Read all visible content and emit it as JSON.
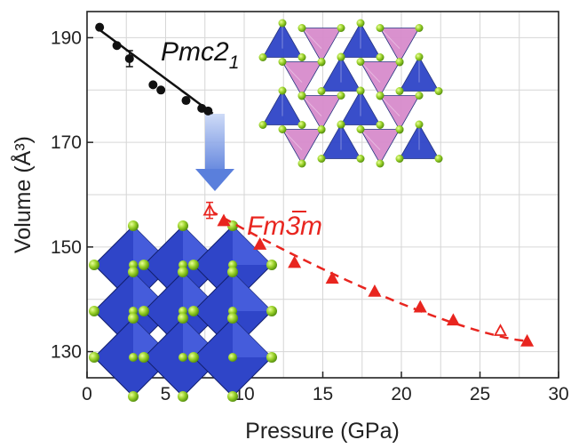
{
  "chart_data": {
    "type": "scatter",
    "title": "",
    "xlabel": "Pressure (GPa)",
    "ylabel": "Volume (Å³)",
    "xlim": [
      0,
      30
    ],
    "ylim": [
      125,
      195
    ],
    "x_ticks": [
      0,
      5,
      10,
      15,
      20,
      25,
      30
    ],
    "y_ticks": [
      130,
      150,
      170,
      190
    ],
    "grid": true,
    "colors": {
      "pmc": "#111111",
      "fm": "#e8251f",
      "arrow": "#6d8fe0",
      "blue_poly": "#2f45c8",
      "pink_poly": "#d88ccc",
      "atom": "#9bd22a"
    },
    "series": [
      {
        "name": "Pmc21",
        "label_main": "Pmc2",
        "label_sub": "1",
        "marker": "circle",
        "color": "#111111",
        "x": [
          0.8,
          1.9,
          2.7,
          4.2,
          4.7,
          6.3,
          7.3,
          7.7
        ],
        "y": [
          192,
          188.5,
          186,
          181,
          180,
          178,
          176.5,
          176
        ],
        "fit_x": [
          0.8,
          8.0
        ],
        "fit_y": [
          191.5,
          175.5
        ]
      },
      {
        "name": "Fm-3m",
        "label_main": "Fm3m",
        "marker": "triangle",
        "color": "#e8251f",
        "x": [
          7.8,
          8.7,
          11.0,
          13.2,
          15.6,
          18.3,
          21.2,
          23.3,
          26.3,
          28.0
        ],
        "y": [
          157,
          155,
          150.5,
          147,
          144,
          141.5,
          138.5,
          136,
          134,
          132
        ],
        "fit_x": [
          7.8,
          28.0
        ],
        "fit_y": [
          157,
          132
        ]
      }
    ]
  }
}
